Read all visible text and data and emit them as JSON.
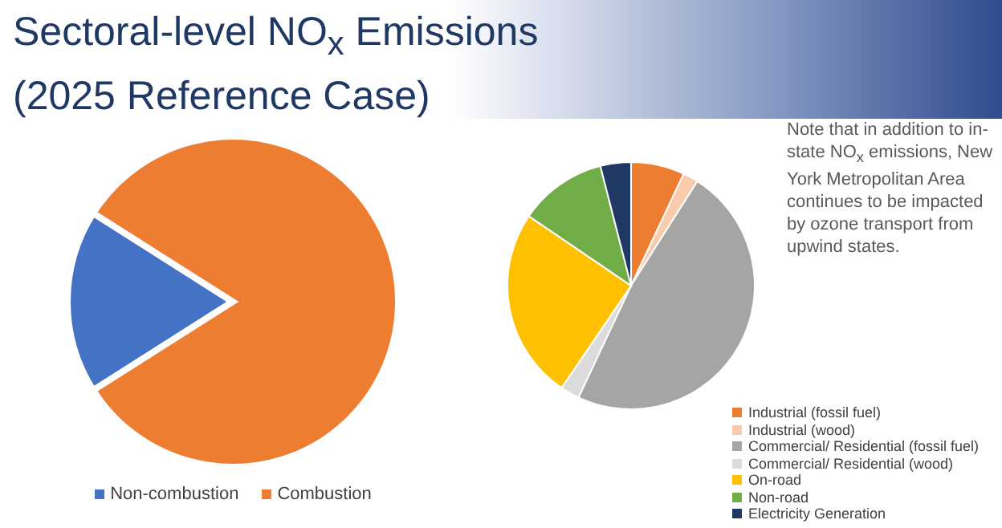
{
  "chart_data": [
    {
      "type": "pie",
      "title": "Sectoral-level NO$_{x}$ Emissions (2025 Reference Case)",
      "categories": [
        "Non-combustion",
        "Combustion"
      ],
      "values": [
        18,
        82
      ],
      "colors": [
        "#4472c4",
        "#ed7d31"
      ],
      "legend": "bottom"
    },
    {
      "type": "pie",
      "categories": [
        "Industrial (fossil fuel)",
        "Industrial (wood)",
        "Commercial/ Residential (fossil fuel)",
        "Commercial/ Residential (wood)",
        "On-road",
        "Non-road",
        "Electricity Generation"
      ],
      "values": [
        7,
        2,
        48,
        2.5,
        25,
        11.5,
        4
      ],
      "colors": [
        "#ed7d31",
        "#f8cbad",
        "#a5a5a5",
        "#dbdbdb",
        "#ffc000",
        "#70ad47",
        "#203864"
      ],
      "legend": "bottom right",
      "annotations": [
        "Note that in addition to in-state NO$_{x}$ emissions, New York Metropolitan Area continues to be impacted by ozone transport from upwind states."
      ]
    }
  ]
}
